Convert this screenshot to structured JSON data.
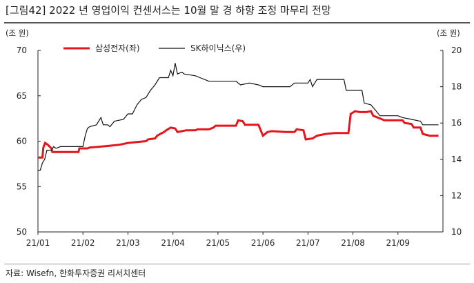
{
  "title": "[그림42]  2022 년 영업이익 컨센서스는 10월 말 경 하향 조정 마무리 전망",
  "source": "자료: Wisefn, 한화투자증권 리서치센터",
  "chart_data": {
    "type": "line",
    "left_unit": "(조 원)",
    "right_unit": "(조 원)",
    "x_tick_labels": [
      "21/01",
      "21/02",
      "21/03",
      "21/04",
      "21/05",
      "21/06",
      "21/07",
      "21/08",
      "21/09"
    ],
    "y_left": {
      "min": 50,
      "max": 70,
      "ticks": [
        50,
        55,
        60,
        65,
        70
      ]
    },
    "y_right": {
      "min": 10,
      "max": 20,
      "ticks": [
        10,
        12,
        14,
        16,
        18,
        20
      ]
    },
    "legend_placement": "top",
    "grid": false,
    "series": [
      {
        "name": "삼성전자(좌)",
        "axis": "left",
        "color": "#e8141b",
        "points": [
          [
            0.0,
            58.2
          ],
          [
            0.1,
            58.2
          ],
          [
            0.12,
            59.3
          ],
          [
            0.16,
            59.8
          ],
          [
            0.22,
            59.6
          ],
          [
            0.3,
            59.2
          ],
          [
            0.32,
            58.8
          ],
          [
            0.6,
            58.8
          ],
          [
            0.9,
            58.8
          ],
          [
            0.92,
            59.2
          ],
          [
            1.1,
            59.2
          ],
          [
            1.15,
            59.3
          ],
          [
            1.4,
            59.4
          ],
          [
            1.6,
            59.5
          ],
          [
            1.8,
            59.6
          ],
          [
            2.0,
            59.8
          ],
          [
            2.2,
            59.9
          ],
          [
            2.4,
            60.0
          ],
          [
            2.45,
            60.2
          ],
          [
            2.6,
            60.3
          ],
          [
            2.65,
            60.6
          ],
          [
            2.72,
            60.8
          ],
          [
            2.8,
            61.0
          ],
          [
            2.85,
            61.2
          ],
          [
            2.95,
            61.5
          ],
          [
            3.05,
            61.4
          ],
          [
            3.1,
            61.0
          ],
          [
            3.2,
            61.1
          ],
          [
            3.3,
            61.2
          ],
          [
            3.5,
            61.2
          ],
          [
            3.55,
            61.3
          ],
          [
            3.8,
            61.3
          ],
          [
            3.9,
            61.5
          ],
          [
            3.95,
            61.7
          ],
          [
            4.4,
            61.7
          ],
          [
            4.45,
            62.3
          ],
          [
            4.55,
            62.2
          ],
          [
            4.6,
            61.8
          ],
          [
            4.9,
            61.8
          ],
          [
            5.0,
            60.6
          ],
          [
            5.1,
            61.0
          ],
          [
            5.2,
            61.1
          ],
          [
            5.5,
            61.0
          ],
          [
            5.7,
            61.0
          ],
          [
            5.75,
            61.3
          ],
          [
            5.9,
            61.2
          ],
          [
            5.95,
            60.2
          ],
          [
            6.1,
            60.3
          ],
          [
            6.2,
            60.6
          ],
          [
            6.4,
            60.8
          ],
          [
            6.6,
            60.9
          ],
          [
            6.8,
            60.9
          ],
          [
            6.9,
            60.9
          ],
          [
            6.95,
            63.0
          ],
          [
            7.05,
            63.3
          ],
          [
            7.15,
            63.2
          ],
          [
            7.3,
            63.2
          ],
          [
            7.4,
            63.3
          ],
          [
            7.45,
            62.8
          ],
          [
            7.6,
            62.5
          ],
          [
            7.7,
            62.3
          ],
          [
            8.0,
            62.3
          ],
          [
            8.1,
            62.3
          ],
          [
            8.15,
            62.0
          ],
          [
            8.3,
            61.9
          ],
          [
            8.35,
            61.5
          ],
          [
            8.5,
            61.5
          ],
          [
            8.55,
            60.8
          ],
          [
            8.7,
            60.6
          ],
          [
            8.9,
            60.6
          ]
        ]
      },
      {
        "name": "SK하이닉스(우)",
        "axis": "right",
        "color": "#111111",
        "points": [
          [
            0.0,
            13.4
          ],
          [
            0.05,
            13.4
          ],
          [
            0.1,
            13.8
          ],
          [
            0.15,
            14.0
          ],
          [
            0.2,
            14.5
          ],
          [
            0.3,
            14.5
          ],
          [
            0.35,
            14.7
          ],
          [
            0.4,
            14.6
          ],
          [
            0.5,
            14.7
          ],
          [
            1.0,
            14.7
          ],
          [
            1.05,
            15.3
          ],
          [
            1.1,
            15.7
          ],
          [
            1.15,
            15.8
          ],
          [
            1.3,
            15.9
          ],
          [
            1.4,
            16.3
          ],
          [
            1.45,
            15.9
          ],
          [
            1.55,
            15.9
          ],
          [
            1.6,
            15.8
          ],
          [
            1.7,
            16.1
          ],
          [
            1.9,
            16.2
          ],
          [
            2.0,
            16.5
          ],
          [
            2.1,
            16.5
          ],
          [
            2.2,
            17.0
          ],
          [
            2.3,
            17.3
          ],
          [
            2.4,
            17.4
          ],
          [
            2.5,
            17.8
          ],
          [
            2.6,
            18.1
          ],
          [
            2.7,
            18.5
          ],
          [
            2.9,
            18.5
          ],
          [
            2.95,
            18.9
          ],
          [
            3.0,
            18.6
          ],
          [
            3.05,
            19.3
          ],
          [
            3.1,
            18.7
          ],
          [
            3.2,
            18.8
          ],
          [
            3.25,
            18.7
          ],
          [
            3.5,
            18.6
          ],
          [
            3.6,
            18.5
          ],
          [
            3.8,
            18.3
          ],
          [
            4.0,
            18.3
          ],
          [
            4.2,
            18.3
          ],
          [
            4.4,
            18.3
          ],
          [
            4.5,
            18.1
          ],
          [
            4.7,
            18.2
          ],
          [
            4.9,
            18.1
          ],
          [
            5.0,
            18.0
          ],
          [
            5.2,
            18.0
          ],
          [
            5.4,
            18.0
          ],
          [
            5.6,
            18.0
          ],
          [
            5.7,
            18.2
          ],
          [
            6.0,
            18.2
          ],
          [
            6.05,
            18.4
          ],
          [
            6.1,
            18.0
          ],
          [
            6.2,
            18.4
          ],
          [
            6.5,
            18.4
          ],
          [
            6.8,
            18.4
          ],
          [
            6.85,
            17.8
          ],
          [
            7.2,
            17.8
          ],
          [
            7.25,
            17.1
          ],
          [
            7.4,
            17.0
          ],
          [
            7.5,
            16.7
          ],
          [
            7.6,
            16.4
          ],
          [
            8.0,
            16.4
          ],
          [
            8.1,
            16.3
          ],
          [
            8.3,
            16.2
          ],
          [
            8.5,
            16.1
          ],
          [
            8.55,
            15.9
          ],
          [
            8.7,
            15.9
          ],
          [
            8.9,
            15.9
          ]
        ]
      }
    ]
  }
}
